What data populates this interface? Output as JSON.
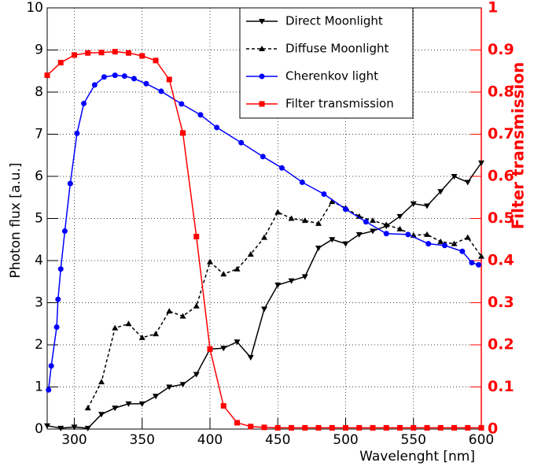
{
  "chart_data": {
    "type": "line",
    "xlabel": "Wavelenght [nm]",
    "ylabel": "Photon flux [a.u.]",
    "y2label": "Filter transmission",
    "xlim": [
      280,
      600
    ],
    "xticks": [
      300,
      350,
      400,
      450,
      500,
      550,
      600
    ],
    "ylim": [
      0,
      10
    ],
    "yticks": [
      0,
      1,
      2,
      3,
      4,
      5,
      6,
      7,
      8,
      9,
      10
    ],
    "y2lim": [
      0,
      1
    ],
    "y2ticks": [
      0,
      0.1,
      0.2,
      0.3,
      0.4,
      0.5,
      0.6,
      0.7,
      0.8,
      0.9,
      1
    ],
    "grid": true,
    "legend": "top-right",
    "series": [
      {
        "name": "Direct Moonlight",
        "color": "#000000",
        "marker": "triangle-down",
        "dash": false,
        "x": [
          280,
          290,
          300,
          310,
          320,
          330,
          340,
          350,
          360,
          370,
          380,
          390,
          400,
          410,
          420,
          430,
          440,
          450,
          460,
          470,
          480,
          490,
          500,
          510,
          520,
          530,
          540,
          550,
          560,
          570,
          580,
          590,
          600
        ],
        "values": [
          0.08,
          0.02,
          0.05,
          0.02,
          0.35,
          0.5,
          0.6,
          0.6,
          0.78,
          1.0,
          1.06,
          1.3,
          1.9,
          1.92,
          2.07,
          1.7,
          2.85,
          3.42,
          3.52,
          3.62,
          4.3,
          4.5,
          4.4,
          4.62,
          4.7,
          4.82,
          5.05,
          5.35,
          5.3,
          5.64,
          6.0,
          5.86,
          6.32
        ]
      },
      {
        "name": "Diffuse Moonlight",
        "color": "#000000",
        "marker": "triangle-up",
        "dash": true,
        "x": [
          310,
          320,
          330,
          340,
          350,
          360,
          370,
          380,
          390,
          400,
          410,
          420,
          430,
          440,
          450,
          460,
          470,
          480,
          490,
          500,
          510,
          520,
          530,
          540,
          550,
          560,
          570,
          580,
          590,
          600
        ],
        "values": [
          0.5,
          1.12,
          2.4,
          2.5,
          2.17,
          2.26,
          2.8,
          2.68,
          2.92,
          3.97,
          3.68,
          3.8,
          4.15,
          4.55,
          5.15,
          5.0,
          4.95,
          4.88,
          5.4,
          5.25,
          5.05,
          4.95,
          4.85,
          4.75,
          4.6,
          4.62,
          4.45,
          4.4,
          4.55,
          4.1
        ]
      },
      {
        "name": "Cherenkov light",
        "color": "#0000ff",
        "marker": "circle",
        "dash": false,
        "x": [
          281,
          283,
          287,
          288,
          290,
          293,
          297,
          302,
          307,
          315,
          322,
          330,
          337,
          344,
          353,
          364,
          379,
          393,
          405,
          423,
          439,
          453,
          468,
          484,
          500,
          515,
          530,
          546,
          561,
          573,
          586,
          593,
          598
        ],
        "values": [
          0.93,
          1.5,
          2.42,
          3.08,
          3.8,
          4.7,
          5.83,
          7.02,
          7.73,
          8.17,
          8.36,
          8.4,
          8.38,
          8.32,
          8.2,
          8.02,
          7.72,
          7.46,
          7.16,
          6.8,
          6.47,
          6.2,
          5.86,
          5.58,
          5.22,
          4.92,
          4.64,
          4.62,
          4.4,
          4.36,
          4.22,
          3.95,
          3.9
        ]
      },
      {
        "name": "Filter transmission",
        "color": "#ff0000",
        "marker": "square",
        "dash": false,
        "axis": "y2",
        "x": [
          280,
          290,
          300,
          310,
          320,
          330,
          340,
          350,
          360,
          370,
          380,
          390,
          400,
          410,
          420,
          430,
          440,
          450,
          460,
          470,
          480,
          490,
          500,
          510,
          520,
          530,
          540,
          550,
          560,
          570,
          580,
          590,
          600
        ],
        "values": [
          0.84,
          0.87,
          0.888,
          0.893,
          0.894,
          0.896,
          0.893,
          0.886,
          0.875,
          0.83,
          0.703,
          0.457,
          0.19,
          0.055,
          0.015,
          0.006,
          0.004,
          0.003,
          0.003,
          0.003,
          0.003,
          0.003,
          0.003,
          0.003,
          0.003,
          0.003,
          0.003,
          0.003,
          0.003,
          0.003,
          0.003,
          0.003,
          0.003
        ]
      }
    ]
  }
}
